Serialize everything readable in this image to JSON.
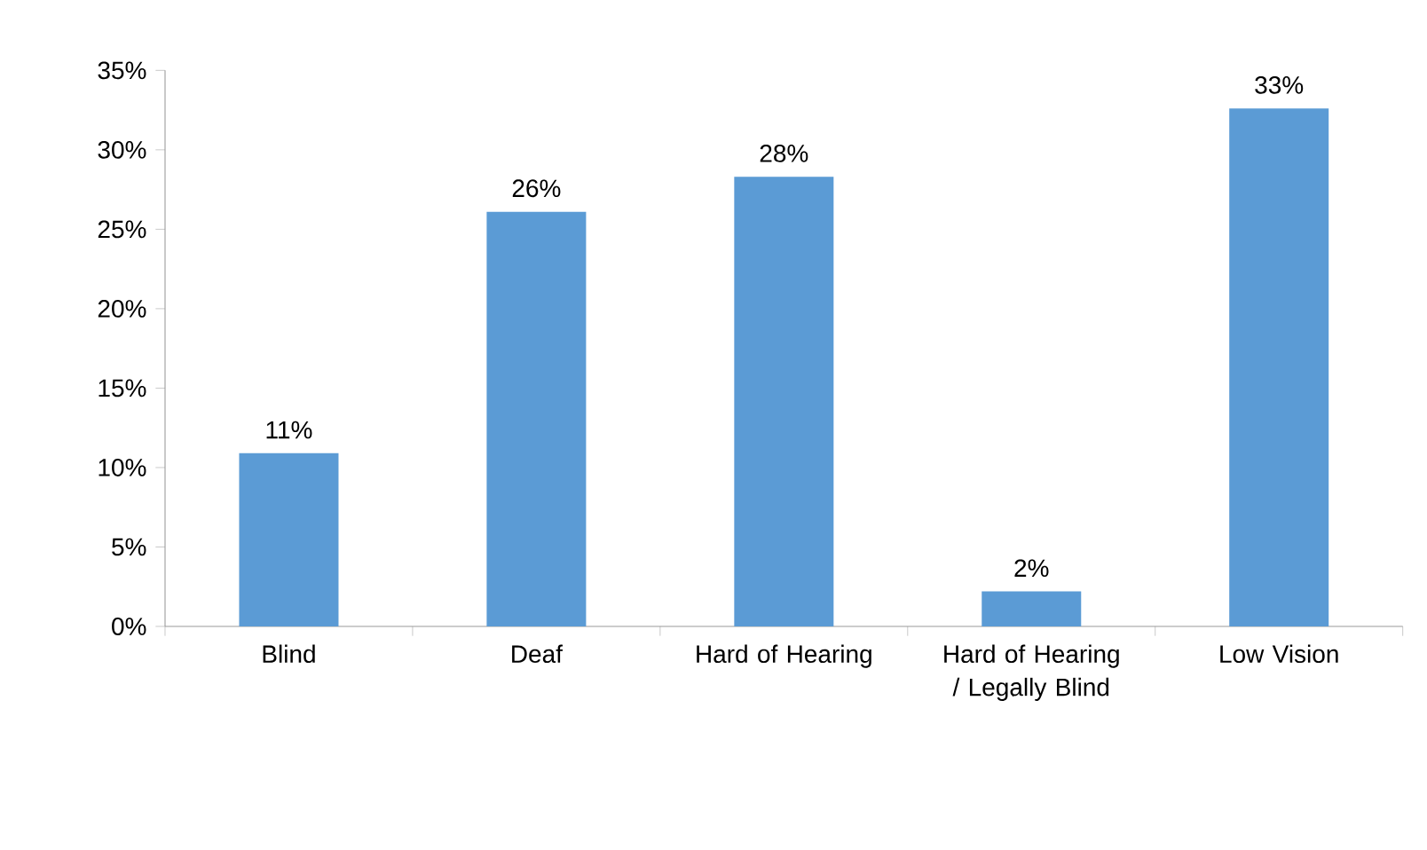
{
  "chart_data": {
    "type": "bar",
    "categories": [
      "Blind",
      "Deaf",
      "Hard of Hearing",
      "Hard of Hearing / Legally Blind",
      "Low Vision"
    ],
    "values": [
      10.9,
      26.1,
      28.3,
      2.2,
      32.6
    ],
    "value_labels": [
      "11%",
      "26%",
      "28%",
      "2%",
      "33%"
    ],
    "color": "#5b9bd5",
    "ylim": [
      0,
      35
    ],
    "yticks": [
      {
        "value": 0,
        "label": "0%"
      },
      {
        "value": 5,
        "label": "5%"
      },
      {
        "value": 10,
        "label": "10%"
      },
      {
        "value": 15,
        "label": "15%"
      },
      {
        "value": 20,
        "label": "20%"
      },
      {
        "value": 25,
        "label": "25%"
      },
      {
        "value": 30,
        "label": "30%"
      },
      {
        "value": 35,
        "label": "35%"
      }
    ],
    "grid": false
  }
}
